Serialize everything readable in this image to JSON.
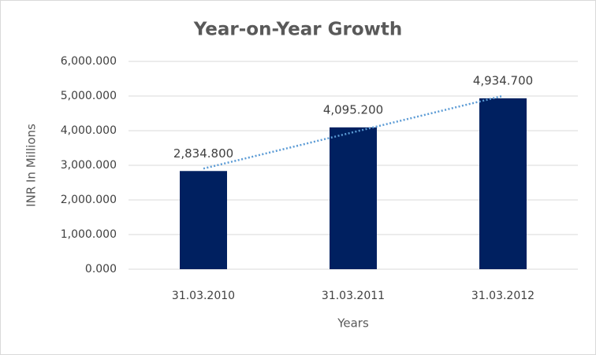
{
  "chart_data": {
    "type": "bar",
    "title": "Year-on-Year Growth",
    "x_label": "Years",
    "y_label": "INR In Millions",
    "categories": [
      "31.03.2010",
      "31.03.2011",
      "31.03.2012"
    ],
    "values": [
      2834.8,
      4095.2,
      4934.7
    ],
    "value_labels": [
      "2,834.800",
      "4,095.200",
      "4,934.700"
    ],
    "color": "#002060",
    "ylim": [
      0,
      6000
    ],
    "yticks": [
      {
        "value": 0,
        "label": "0.000"
      },
      {
        "value": 1000,
        "label": "1,000.000"
      },
      {
        "value": 2000,
        "label": "2,000.000"
      },
      {
        "value": 3000,
        "label": "3,000.000"
      },
      {
        "value": 4000,
        "label": "4,000.000"
      },
      {
        "value": 5000,
        "label": "5,000.000"
      },
      {
        "value": 6000,
        "label": "6,000.000"
      }
    ],
    "grid": true,
    "trendline": {
      "type": "linear",
      "color": "#5b9bd5"
    }
  }
}
